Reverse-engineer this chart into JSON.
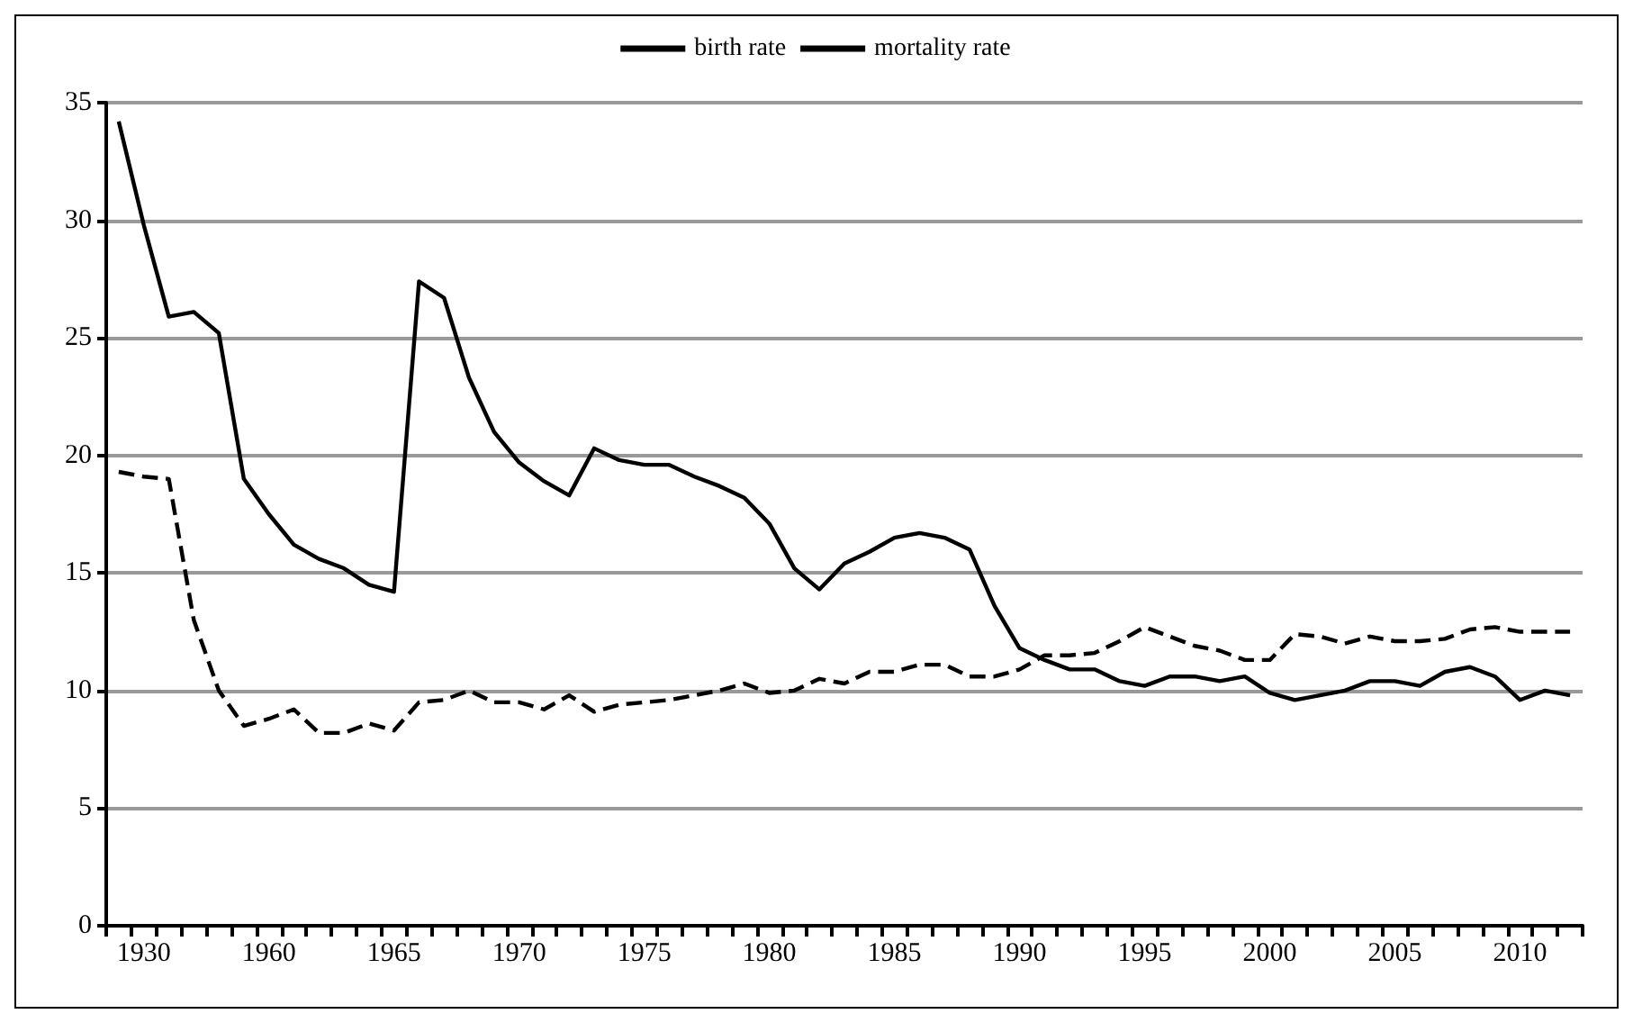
{
  "chart_data": {
    "type": "line",
    "categories": [
      null,
      "1930",
      null,
      null,
      null,
      null,
      "1960",
      null,
      null,
      null,
      null,
      "1965",
      null,
      null,
      null,
      null,
      "1970",
      null,
      null,
      null,
      null,
      "1975",
      null,
      null,
      null,
      null,
      "1980",
      null,
      null,
      null,
      null,
      "1985",
      null,
      null,
      null,
      null,
      "1990",
      null,
      null,
      null,
      null,
      "1995",
      null,
      null,
      null,
      null,
      "2000",
      null,
      null,
      null,
      null,
      "2005",
      null,
      null,
      null,
      null,
      "2010",
      null,
      null
    ],
    "series": [
      {
        "name": "birth rate",
        "color": "#000000",
        "line_style": "solid",
        "values": [
          34.2,
          29.8,
          25.9,
          26.1,
          25.2,
          19.0,
          17.5,
          16.2,
          15.6,
          15.2,
          14.5,
          14.2,
          27.4,
          26.7,
          23.3,
          21.0,
          19.7,
          18.9,
          18.3,
          20.3,
          19.8,
          19.6,
          19.6,
          19.1,
          18.7,
          18.2,
          17.1,
          15.2,
          14.3,
          15.4,
          15.9,
          16.5,
          16.7,
          16.5,
          16.0,
          13.6,
          11.8,
          11.3,
          10.9,
          10.9,
          10.4,
          10.2,
          10.6,
          10.6,
          10.4,
          10.6,
          9.9,
          9.6,
          9.8,
          10.0,
          10.4,
          10.4,
          10.2,
          10.8,
          11.0,
          10.6,
          9.6,
          10.0,
          9.8
        ]
      },
      {
        "name": "mortality rate",
        "color": "#000000",
        "line_style": "dashed",
        "values": [
          19.3,
          19.1,
          19.0,
          13.0,
          10.0,
          8.5,
          8.8,
          9.2,
          8.2,
          8.2,
          8.6,
          8.3,
          9.5,
          9.6,
          10.0,
          9.5,
          9.5,
          9.2,
          9.8,
          9.1,
          9.4,
          9.5,
          9.6,
          9.8,
          10.0,
          10.3,
          9.9,
          10.0,
          10.5,
          10.3,
          10.8,
          10.8,
          11.1,
          11.1,
          10.6,
          10.6,
          10.9,
          11.5,
          11.5,
          11.6,
          12.1,
          12.7,
          12.3,
          11.9,
          11.7,
          11.3,
          11.3,
          12.4,
          12.3,
          12.0,
          12.3,
          12.1,
          12.1,
          12.2,
          12.6,
          12.7,
          12.5,
          12.5,
          12.5
        ]
      }
    ],
    "ylim": [
      0,
      35
    ],
    "yticks": [
      0,
      5,
      10,
      15,
      20,
      25,
      30,
      35
    ],
    "grid": "y",
    "legend": "top",
    "marker": "none"
  }
}
